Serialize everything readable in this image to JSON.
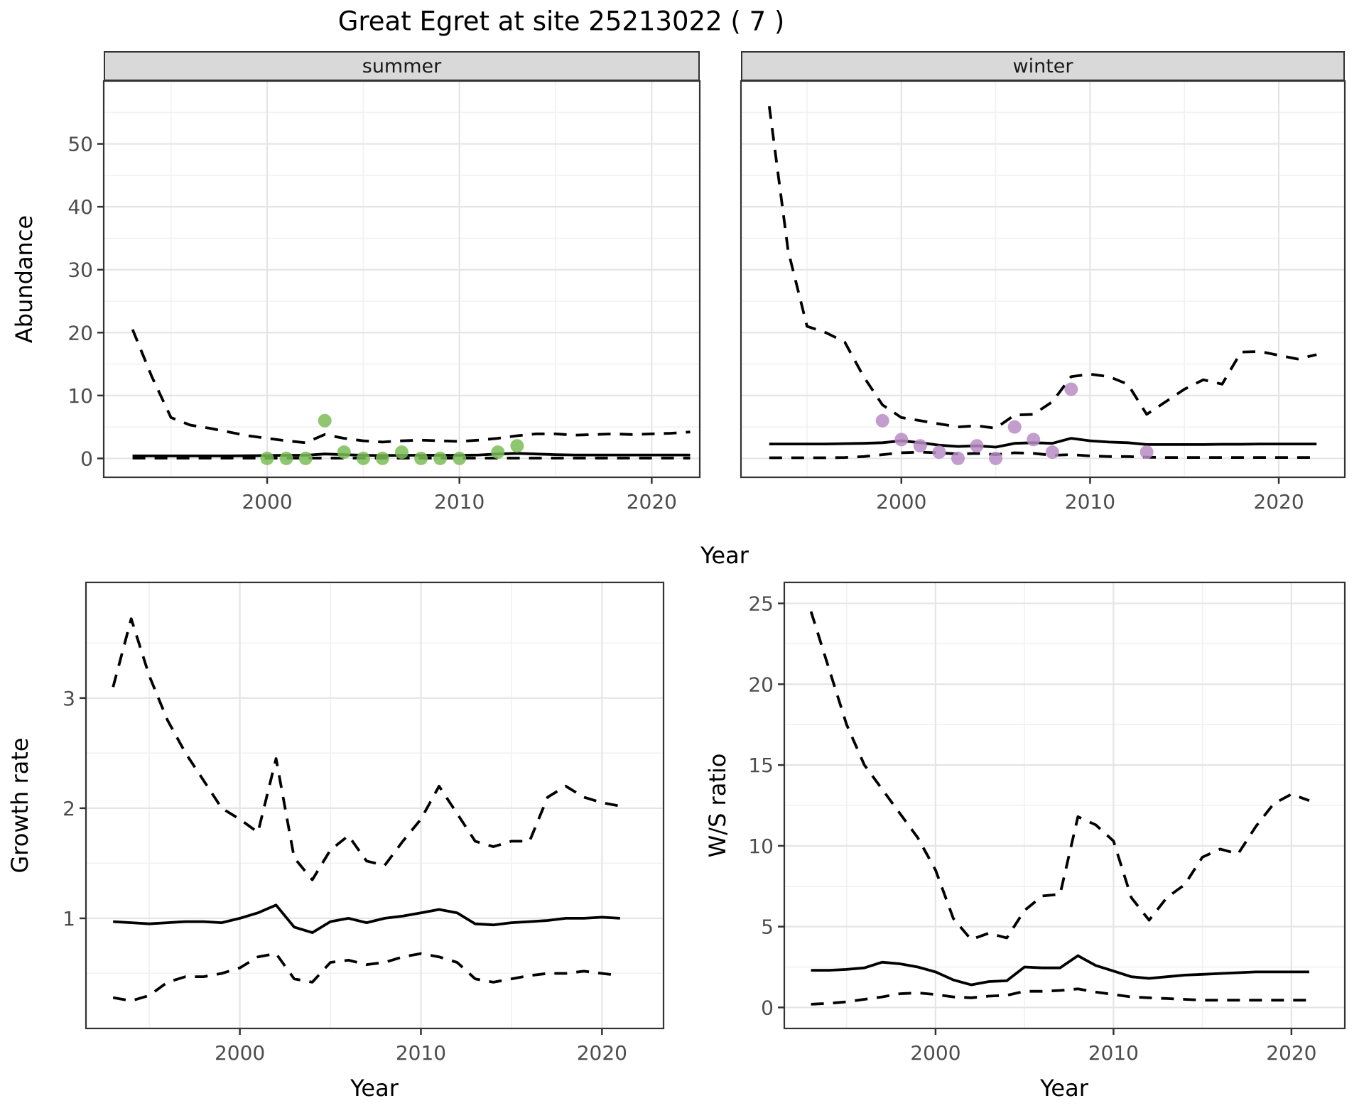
{
  "title": "Great Egret at site 25213022 ( 7 )",
  "shared_x_label": "Year",
  "colors": {
    "summer_points": "#7abd57",
    "winter_points": "#b78cc6",
    "line": "#000000",
    "strip_bg": "#d9d9d9",
    "grid_major": "#e5e5e5",
    "grid_minor": "#f1f1f1",
    "axis_text": "#4d4d4d",
    "border": "#333333"
  },
  "chart_data": [
    {
      "id": "abundance-summer",
      "type": "line",
      "facet_label": "summer",
      "xlabel": "Year",
      "ylabel": "Abundance",
      "xlim": [
        1991.5,
        2022.5
      ],
      "ylim": [
        -3,
        60
      ],
      "xticks": [
        2000,
        2010,
        2020
      ],
      "yticks": [
        0,
        10,
        20,
        30,
        40,
        50
      ],
      "grid": true,
      "x": [
        1993,
        1994,
        1995,
        1996,
        1997,
        1998,
        1999,
        2000,
        2001,
        2002,
        2003,
        2004,
        2005,
        2006,
        2007,
        2008,
        2009,
        2010,
        2011,
        2012,
        2013,
        2014,
        2015,
        2016,
        2017,
        2018,
        2019,
        2020,
        2021,
        2022
      ],
      "series": [
        {
          "name": "median",
          "style": "solid",
          "values": [
            0.4,
            0.4,
            0.4,
            0.4,
            0.4,
            0.4,
            0.42,
            0.45,
            0.5,
            0.5,
            0.7,
            0.6,
            0.5,
            0.45,
            0.5,
            0.5,
            0.5,
            0.5,
            0.55,
            0.7,
            0.8,
            0.7,
            0.6,
            0.55,
            0.55,
            0.55,
            0.55,
            0.55,
            0.55,
            0.55
          ]
        },
        {
          "name": "upper_95ci",
          "style": "dashed",
          "values": [
            20.5,
            13,
            6.5,
            5.3,
            4.8,
            4.2,
            3.6,
            3.2,
            2.8,
            2.5,
            3.8,
            3.2,
            2.8,
            2.6,
            2.8,
            2.9,
            2.8,
            2.7,
            2.9,
            3.2,
            3.6,
            3.9,
            3.9,
            3.7,
            3.8,
            3.9,
            3.8,
            3.9,
            4.0,
            4.2
          ]
        },
        {
          "name": "lower_95ci",
          "style": "dashed",
          "values": [
            0.05,
            0.05,
            0.05,
            0.05,
            0.05,
            0.05,
            0.05,
            0.05,
            0.05,
            0.05,
            0.05,
            0.05,
            0.05,
            0.05,
            0.05,
            0.05,
            0.05,
            0.05,
            0.05,
            0.05,
            0.05,
            0.05,
            0.05,
            0.05,
            0.05,
            0.05,
            0.05,
            0.05,
            0.05,
            0.05
          ]
        }
      ],
      "points": {
        "name": "observed-counts-summer",
        "color": "#7abd57",
        "x": [
          2000,
          2001,
          2002,
          2003,
          2004,
          2005,
          2006,
          2007,
          2008,
          2009,
          2010,
          2012,
          2013
        ],
        "y": [
          0,
          0,
          0,
          6,
          1,
          0,
          0,
          1,
          0,
          0,
          0,
          1,
          2
        ]
      }
    },
    {
      "id": "abundance-winter",
      "type": "line",
      "facet_label": "winter",
      "xlabel": "Year",
      "ylabel": "Abundance",
      "xlim": [
        1991.5,
        2023.5
      ],
      "ylim": [
        -3,
        60
      ],
      "xticks": [
        2000,
        2010,
        2020
      ],
      "yticks": [
        0,
        10,
        20,
        30,
        40,
        50
      ],
      "grid": true,
      "x": [
        1993,
        1994,
        1995,
        1996,
        1997,
        1998,
        1999,
        2000,
        2001,
        2002,
        2003,
        2004,
        2005,
        2006,
        2007,
        2008,
        2009,
        2010,
        2011,
        2012,
        2013,
        2014,
        2015,
        2016,
        2017,
        2018,
        2019,
        2020,
        2021,
        2022
      ],
      "series": [
        {
          "name": "median",
          "style": "solid",
          "values": [
            2.3,
            2.3,
            2.3,
            2.3,
            2.35,
            2.4,
            2.5,
            2.8,
            2.5,
            2.1,
            1.9,
            2.0,
            1.8,
            2.4,
            2.5,
            2.4,
            3.2,
            2.8,
            2.6,
            2.5,
            2.2,
            2.2,
            2.2,
            2.2,
            2.25,
            2.25,
            2.3,
            2.3,
            2.3,
            2.3
          ]
        },
        {
          "name": "upper_95ci",
          "style": "dashed",
          "values": [
            56,
            33,
            21,
            20,
            18.5,
            13,
            8.5,
            6.5,
            6,
            5.5,
            5,
            5.2,
            4.8,
            6.9,
            7,
            9,
            13,
            13.4,
            13,
            11.8,
            7,
            9,
            11,
            12.5,
            11.8,
            16.9,
            17,
            16.4,
            15.8,
            16.5
          ]
        },
        {
          "name": "lower_95ci",
          "style": "dashed",
          "values": [
            0.1,
            0.1,
            0.1,
            0.1,
            0.15,
            0.3,
            0.6,
            0.9,
            1.0,
            0.9,
            0.7,
            0.8,
            0.6,
            0.9,
            0.8,
            0.5,
            0.6,
            0.4,
            0.3,
            0.3,
            0.2,
            0.15,
            0.15,
            0.15,
            0.15,
            0.15,
            0.15,
            0.15,
            0.15,
            0.15
          ]
        }
      ],
      "points": {
        "name": "observed-counts-winter",
        "color": "#b78cc6",
        "x": [
          1999,
          2000,
          2001,
          2002,
          2003,
          2004,
          2005,
          2006,
          2007,
          2008,
          2009,
          2013
        ],
        "y": [
          6,
          3,
          2,
          1,
          0,
          2,
          0,
          5,
          3,
          1,
          11,
          1
        ]
      }
    },
    {
      "id": "growth-rate",
      "type": "line",
      "facet_label": "",
      "xlabel": "Year",
      "ylabel": "Growth rate",
      "xlim": [
        1991.5,
        2023.4
      ],
      "ylim": [
        0,
        4.05
      ],
      "xticks": [
        2000,
        2010,
        2020
      ],
      "yticks": [
        1,
        2,
        3
      ],
      "grid": true,
      "x": [
        1993,
        1994,
        1995,
        1996,
        1997,
        1998,
        1999,
        2000,
        2001,
        2002,
        2003,
        2004,
        2005,
        2006,
        2007,
        2008,
        2009,
        2010,
        2011,
        2012,
        2013,
        2014,
        2015,
        2016,
        2017,
        2018,
        2019,
        2020,
        2021
      ],
      "series": [
        {
          "name": "median",
          "style": "solid",
          "values": [
            0.97,
            0.96,
            0.95,
            0.96,
            0.97,
            0.97,
            0.96,
            1.0,
            1.05,
            1.12,
            0.92,
            0.87,
            0.97,
            1.0,
            0.96,
            1.0,
            1.02,
            1.05,
            1.08,
            1.05,
            0.95,
            0.94,
            0.96,
            0.97,
            0.98,
            1.0,
            1.0,
            1.01,
            1.0
          ]
        },
        {
          "name": "upper_95ci",
          "style": "dashed",
          "values": [
            3.1,
            3.72,
            3.2,
            2.8,
            2.5,
            2.25,
            2.0,
            1.9,
            1.78,
            2.45,
            1.55,
            1.35,
            1.62,
            1.75,
            1.52,
            1.48,
            1.7,
            1.9,
            2.2,
            1.95,
            1.7,
            1.65,
            1.7,
            1.7,
            2.1,
            2.2,
            2.1,
            2.05,
            2.02
          ]
        },
        {
          "name": "lower_95ci",
          "style": "dashed",
          "values": [
            0.28,
            0.25,
            0.3,
            0.42,
            0.47,
            0.47,
            0.5,
            0.55,
            0.65,
            0.68,
            0.45,
            0.42,
            0.6,
            0.62,
            0.58,
            0.6,
            0.65,
            0.68,
            0.65,
            0.6,
            0.45,
            0.42,
            0.45,
            0.48,
            0.5,
            0.5,
            0.52,
            0.5,
            0.48
          ]
        }
      ],
      "points": null
    },
    {
      "id": "ws-ratio",
      "type": "line",
      "facet_label": "",
      "xlabel": "Year",
      "ylabel": "W/S ratio",
      "xlim": [
        1991.5,
        2023.0
      ],
      "ylim": [
        -1.3,
        26.3
      ],
      "xticks": [
        2000,
        2010,
        2020
      ],
      "yticks": [
        0,
        5,
        10,
        15,
        20,
        25
      ],
      "grid": true,
      "x": [
        1993,
        1994,
        1995,
        1996,
        1997,
        1998,
        1999,
        2000,
        2001,
        2002,
        2003,
        2004,
        2005,
        2006,
        2007,
        2008,
        2009,
        2010,
        2011,
        2012,
        2013,
        2014,
        2015,
        2016,
        2017,
        2018,
        2019,
        2020,
        2021
      ],
      "series": [
        {
          "name": "median",
          "style": "solid",
          "values": [
            2.3,
            2.3,
            2.35,
            2.45,
            2.8,
            2.7,
            2.5,
            2.2,
            1.7,
            1.4,
            1.6,
            1.65,
            2.5,
            2.45,
            2.45,
            3.2,
            2.6,
            2.25,
            1.9,
            1.8,
            1.9,
            2.0,
            2.05,
            2.1,
            2.15,
            2.2,
            2.2,
            2.2,
            2.2
          ]
        },
        {
          "name": "upper_95ci",
          "style": "dashed",
          "values": [
            24.5,
            21,
            17.5,
            15,
            13.5,
            12,
            10.5,
            8.5,
            5.5,
            4.2,
            4.6,
            4.3,
            6,
            6.9,
            7,
            11.8,
            11.3,
            10.3,
            6.8,
            5.4,
            6.8,
            7.6,
            9.3,
            9.8,
            9.5,
            11.2,
            12.6,
            13.2,
            12.8
          ]
        },
        {
          "name": "lower_95ci",
          "style": "dashed",
          "values": [
            0.2,
            0.25,
            0.35,
            0.5,
            0.65,
            0.85,
            0.9,
            0.8,
            0.65,
            0.6,
            0.7,
            0.75,
            1.0,
            1.0,
            1.05,
            1.15,
            0.95,
            0.8,
            0.65,
            0.6,
            0.55,
            0.5,
            0.45,
            0.45,
            0.45,
            0.45,
            0.45,
            0.45,
            0.45
          ]
        }
      ],
      "points": null
    }
  ]
}
